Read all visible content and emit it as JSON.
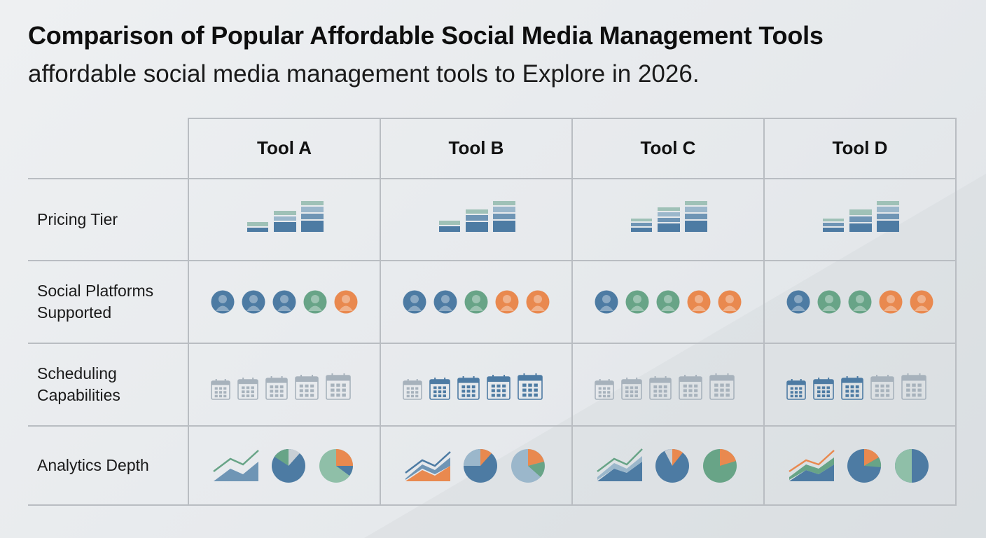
{
  "title": "Comparison of Popular Affordable Social Media Management Tools",
  "subtitle": "affordable social media management tools to Explore in 2026.",
  "colors": {
    "blue": "#4d7ba3",
    "blue_mid": "#6f95b5",
    "blue_light": "#9bb7cb",
    "teal_light": "#9fc1b7",
    "green": "#68a487",
    "green_light": "#8fbfa8",
    "orange": "#e9894f",
    "gray_light": "#c8cfd5",
    "icon_gray": "#a7b2bc"
  },
  "table": {
    "columns": [
      "Tool A",
      "Tool B",
      "Tool C",
      "Tool D"
    ],
    "rows": [
      {
        "label": "Pricing Tier",
        "icon": "stacked-bar-icon"
      },
      {
        "label": "Social Platforms\nSupported",
        "icon": "user-avatar-icon"
      },
      {
        "label": "Scheduling\nCapabilities",
        "icon": "calendar-icon"
      },
      {
        "label": "Analytics Depth",
        "icon": "analytics-icon"
      }
    ],
    "platform_colors": [
      [
        "blue",
        "blue",
        "blue",
        "green",
        "orange"
      ],
      [
        "blue",
        "blue",
        "green",
        "orange",
        "orange"
      ],
      [
        "blue",
        "green",
        "green",
        "orange",
        "orange"
      ],
      [
        "blue",
        "green",
        "green",
        "orange",
        "orange"
      ]
    ],
    "scheduling_levels": [
      [
        "gray",
        "gray",
        "gray",
        "gray",
        "gray"
      ],
      [
        "gray",
        "blue",
        "blue",
        "blue",
        "blue"
      ],
      [
        "gray",
        "gray",
        "gray",
        "gray",
        "gray"
      ],
      [
        "blue",
        "blue",
        "blue",
        "gray",
        "gray"
      ]
    ]
  }
}
